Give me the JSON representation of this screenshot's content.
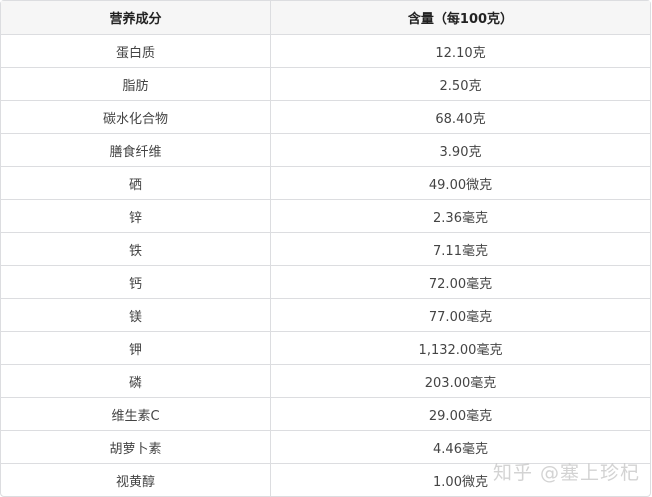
{
  "table": {
    "headers": [
      "营养成分",
      "含量（每100克）"
    ],
    "rows": [
      [
        "蛋白质",
        "12.10克"
      ],
      [
        "脂肪",
        "2.50克"
      ],
      [
        "碳水化合物",
        "68.40克"
      ],
      [
        "膳食纤维",
        "3.90克"
      ],
      [
        "硒",
        "49.00微克"
      ],
      [
        "锌",
        "2.36毫克"
      ],
      [
        "铁",
        "7.11毫克"
      ],
      [
        "钙",
        "72.00毫克"
      ],
      [
        "镁",
        "77.00毫克"
      ],
      [
        "钾",
        "1,132.00毫克"
      ],
      [
        "磷",
        "203.00毫克"
      ],
      [
        "维生素C",
        "29.00毫克"
      ],
      [
        "胡萝卜素",
        "4.46毫克"
      ],
      [
        "视黄醇",
        "1.00微克"
      ]
    ]
  },
  "watermark": "知乎 @塞上珍杞"
}
